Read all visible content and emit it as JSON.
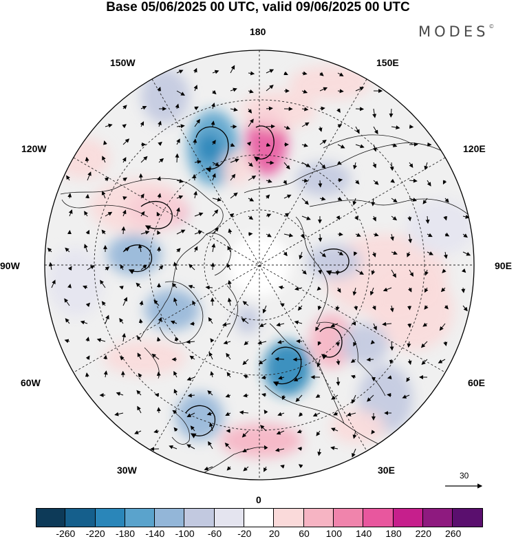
{
  "title": "Base 05/06/2025 00 UTC, valid 09/06/2025 00 UTC",
  "brand": "MODES",
  "brand_mark": "©",
  "longitude_labels": {
    "top": "180",
    "top_left": "150W",
    "top_right": "150E",
    "upper_left": "120W",
    "upper_right": "120E",
    "left": "90W",
    "right": "90E",
    "lower_left": "60W",
    "lower_right": "60E",
    "bottom_left": "30W",
    "bottom_right": "30E",
    "bottom": "0"
  },
  "reference_vector": "30",
  "colorbar": {
    "ticks": [
      "-260",
      "-220",
      "-180",
      "-140",
      "-100",
      "-60",
      "-20",
      "20",
      "60",
      "100",
      "140",
      "180",
      "220",
      "260"
    ],
    "colors": [
      "#0d3a58",
      "#155f8c",
      "#2a86b9",
      "#5aa3cc",
      "#93b6d8",
      "#c2c9e0",
      "#e4e4ef",
      "#ffffff",
      "#fadada",
      "#f6b4c3",
      "#f084ac",
      "#e8579e",
      "#c61f8c",
      "#8e1a7f",
      "#5a0f6e"
    ]
  },
  "map": {
    "projection": "north polar stereographic",
    "background_color": "#f0f0f0",
    "coastline_color": "#111111"
  }
}
